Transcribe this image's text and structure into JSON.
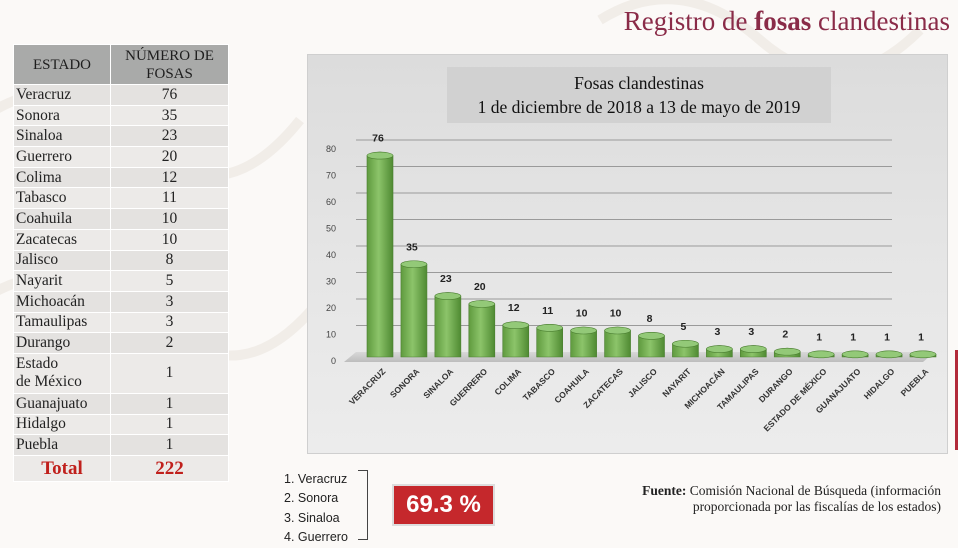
{
  "page": {
    "title_part1": "Registro de ",
    "title_part2": "fosas",
    "title_part3": " clandestinas"
  },
  "table": {
    "header_state": "ESTADO",
    "header_count_line1": "NÚMERO DE",
    "header_count_line2": "FOSAS",
    "rows": [
      {
        "state": "Veracruz",
        "count": "76"
      },
      {
        "state": "Sonora",
        "count": "35"
      },
      {
        "state": "Sinaloa",
        "count": "23"
      },
      {
        "state": "Guerrero",
        "count": "20"
      },
      {
        "state": "Colima",
        "count": "12"
      },
      {
        "state": "Tabasco",
        "count": "11"
      },
      {
        "state": "Coahuila",
        "count": "10"
      },
      {
        "state": "Zacatecas",
        "count": "10"
      },
      {
        "state": "Jalisco",
        "count": "8"
      },
      {
        "state": "Nayarit",
        "count": "5"
      },
      {
        "state": "Michoacán",
        "count": "3"
      },
      {
        "state": "Tamaulipas",
        "count": "3"
      },
      {
        "state": "Durango",
        "count": "2"
      },
      {
        "state_line1": "Estado",
        "state_line2": "de México",
        "count": "1"
      },
      {
        "state": "Guanajuato",
        "count": "1"
      },
      {
        "state": "Hidalgo",
        "count": "1"
      },
      {
        "state": "Puebla",
        "count": "1"
      }
    ],
    "total_label": "Total",
    "total_value": "222"
  },
  "chart_data": {
    "type": "bar",
    "title_line1": "Fosas clandestinas",
    "title_line2": "1 de diciembre de 2018 a 13 de mayo de 2019",
    "categories": [
      "VERACRUZ",
      "SONORA",
      "SINALOA",
      "GUERRERO",
      "COLIMA",
      "TABASCO",
      "COAHUILA",
      "ZACATECAS",
      "JALISCO",
      "NAYARIT",
      "MICHOACÁN",
      "TAMAULIPAS",
      "DURANGO",
      "ESTADO DE MÉXICO",
      "GUANAJUATO",
      "HIDALGO",
      "PUEBLA"
    ],
    "values": [
      76,
      35,
      23,
      20,
      12,
      11,
      10,
      10,
      8,
      5,
      3,
      3,
      2,
      1,
      1,
      1,
      1
    ],
    "ylim": [
      0,
      80
    ],
    "yticks": [
      0,
      10,
      20,
      30,
      40,
      50,
      60,
      70,
      80
    ],
    "grid": true,
    "bar_color": "#6ea84a"
  },
  "summary": {
    "top_list": [
      "1. Veracruz",
      "2. Sonora",
      "3. Sinaloa",
      "4. Guerrero"
    ],
    "percentage": "69.3 %"
  },
  "source": {
    "label": "Fuente:",
    "text_line1": " Comisión Nacional de Búsqueda (información",
    "text_line2": "proporcionada por las fiscalías de los estados)"
  },
  "colors": {
    "title": "#8a2b48",
    "accent_red": "#c5282c",
    "table_header": "#a9aaa9"
  }
}
